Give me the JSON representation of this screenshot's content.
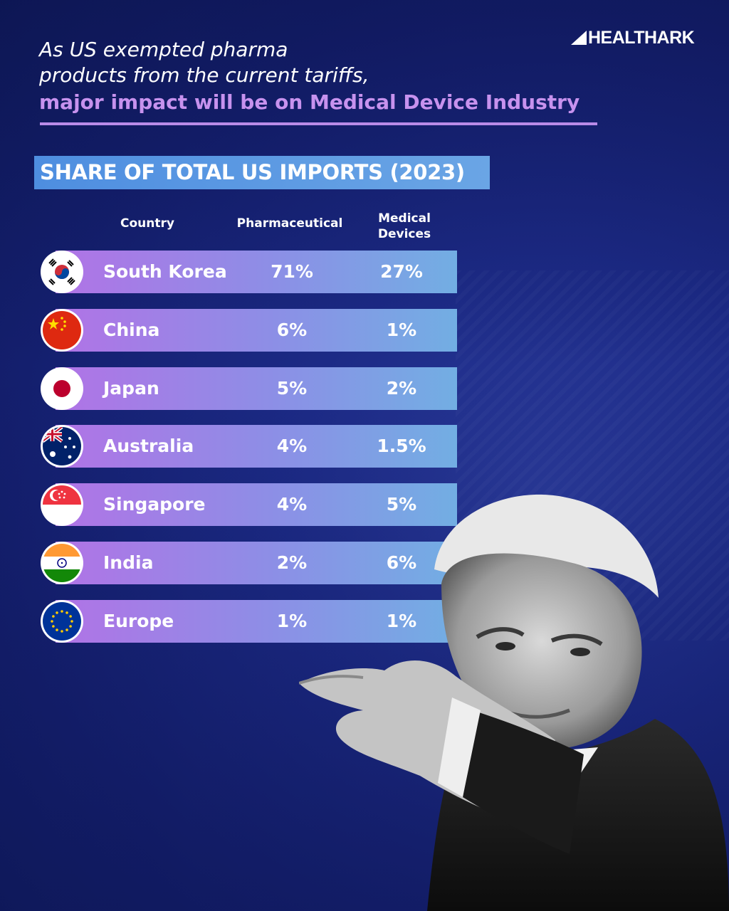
{
  "logo": {
    "text": "HEALTHARK"
  },
  "headline": {
    "line1": "As US exempted pharma",
    "line2": "products from the current tariffs,",
    "line3": "major impact will be on Medical Device Industry"
  },
  "colors": {
    "accent_purple": "#c792ee",
    "title_bar": "#4e8ee0",
    "background": "#1c2a86"
  },
  "chart_data": {
    "type": "table",
    "title": "SHARE OF TOTAL US IMPORTS (2023)",
    "columns": [
      "Country",
      "Pharmaceutical",
      "Medical Devices"
    ],
    "rows": [
      {
        "country": "South Korea",
        "flag": "south-korea-flag-icon",
        "pharmaceutical": "71%",
        "medical_devices": "27%"
      },
      {
        "country": "China",
        "flag": "china-flag-icon",
        "pharmaceutical": "6%",
        "medical_devices": "1%"
      },
      {
        "country": "Japan",
        "flag": "japan-flag-icon",
        "pharmaceutical": "5%",
        "medical_devices": "2%"
      },
      {
        "country": "Australia",
        "flag": "australia-flag-icon",
        "pharmaceutical": "4%",
        "medical_devices": "1.5%"
      },
      {
        "country": "Singapore",
        "flag": "singapore-flag-icon",
        "pharmaceutical": "4%",
        "medical_devices": "5%"
      },
      {
        "country": "India",
        "flag": "india-flag-icon",
        "pharmaceutical": "2%",
        "medical_devices": "6%"
      },
      {
        "country": "Europe",
        "flag": "eu-flag-icon",
        "pharmaceutical": "1%",
        "medical_devices": "1%"
      }
    ]
  },
  "table_header": {
    "country": "Country",
    "pharmaceutical": "Pharmaceutical",
    "medical_line1": "Medical",
    "medical_line2": "Devices"
  }
}
